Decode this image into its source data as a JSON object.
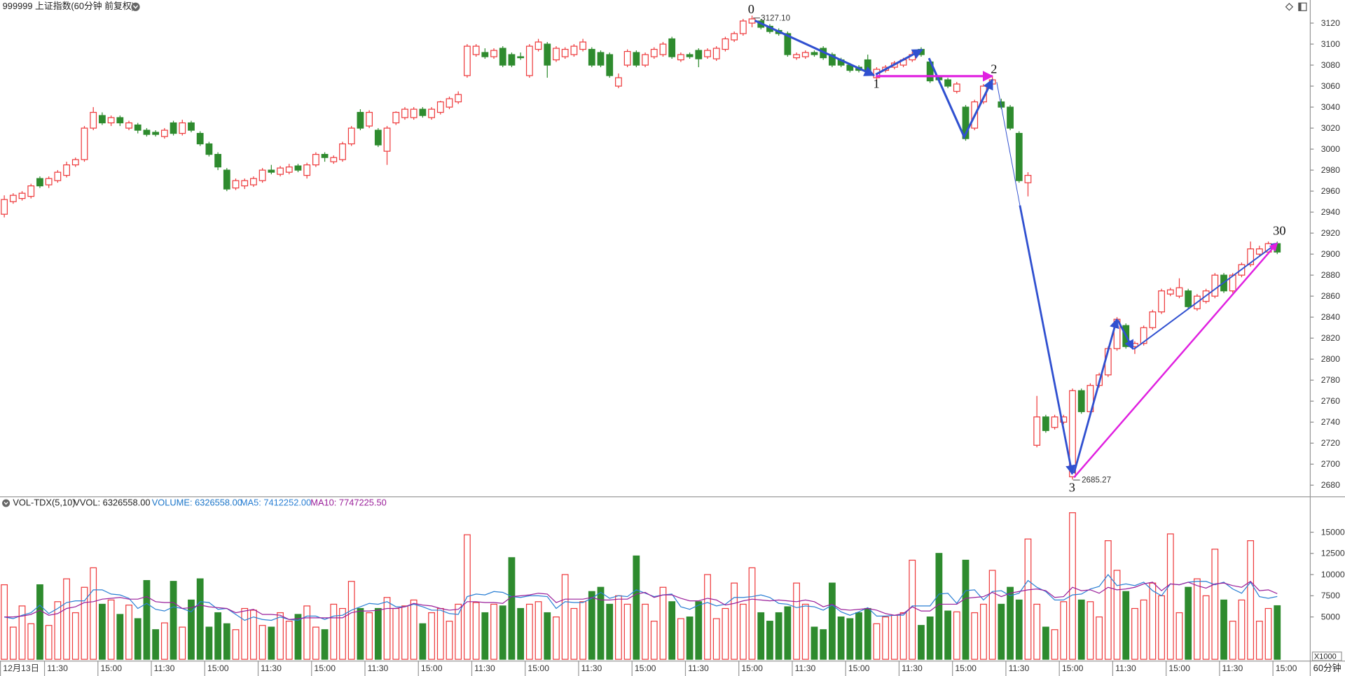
{
  "chart_data": [
    {
      "type": "candlestick",
      "title": "999999 上证指数(60分钟 前复权)",
      "xlabel": "60分钟",
      "up_color": "#ee3a3c",
      "down_color": "#2e8b2e",
      "annotations": [
        "0",
        "3127.10",
        "1",
        "2",
        "3",
        "2685.27",
        "30"
      ],
      "ylim": [
        2669.4,
        3142
      ],
      "yticks": [
        2680,
        2700,
        2720,
        2740,
        2760,
        2780,
        2800,
        2820,
        2840,
        2860,
        2880,
        2900,
        2920,
        2940,
        2960,
        2980,
        3000,
        3020,
        3040,
        3060,
        3080,
        3100,
        3120
      ],
      "categories": [
        "12月13日",
        null,
        null,
        null,
        null,
        "11:30",
        null,
        null,
        null,
        null,
        null,
        "15:00",
        null,
        null,
        null,
        null,
        null,
        "11:30",
        null,
        null,
        null,
        null,
        null,
        "15:00",
        null,
        null,
        null,
        null,
        null,
        "11:30",
        null,
        null,
        null,
        null,
        null,
        "15:00",
        null,
        null,
        null,
        null,
        null,
        "11:30",
        null,
        null,
        null,
        null,
        null,
        "15:00",
        null,
        null,
        null,
        null,
        null,
        "11:30",
        null,
        null,
        null,
        null,
        null,
        "15:00",
        null,
        null,
        null,
        null,
        null,
        "11:30",
        null,
        null,
        null,
        null,
        null,
        "15:00",
        null,
        null,
        null,
        null,
        null,
        "11:30",
        null,
        null,
        null,
        null,
        null,
        "15:00",
        null,
        null,
        null,
        null,
        null,
        "11:30",
        null,
        null,
        null,
        null,
        null,
        "15:00",
        null,
        null,
        null,
        null,
        null,
        "11:30",
        null,
        null,
        null,
        null,
        null,
        "15:00",
        null,
        null,
        null,
        null,
        null,
        "11:30",
        null,
        null,
        null,
        null,
        null,
        "15:00",
        null,
        null,
        null,
        null,
        null,
        "11:30",
        null,
        null,
        null,
        null,
        null,
        "15:00",
        null,
        null,
        null,
        null,
        null,
        "11:30",
        null,
        null,
        null,
        null,
        null,
        "15:00"
      ],
      "open": [
        2938,
        2950,
        2953,
        2955,
        2972,
        2966,
        2970,
        2975,
        2985,
        2990,
        3020,
        3032,
        3025,
        3030,
        3020,
        3023,
        3018,
        3016,
        3012,
        3025,
        3015,
        3025,
        3015,
        3005,
        2995,
        2980,
        2963,
        2965,
        2966,
        2970,
        2980,
        2976,
        2978,
        2984,
        2975,
        2985,
        2995,
        2988,
        2990,
        3005,
        3035,
        3022,
        3018,
        2998,
        3025,
        3030,
        3030,
        3038,
        3030,
        3035,
        3040,
        3045,
        3070,
        3090,
        3092,
        3088,
        3096,
        3090,
        3088,
        3070,
        3095,
        3100,
        3085,
        3088,
        3090,
        3095,
        3095,
        3092,
        3090,
        3060,
        3080,
        3092,
        3080,
        3088,
        3090,
        3105,
        3085,
        3090,
        3094,
        3088,
        3086,
        3095,
        3104,
        3110,
        3120,
        3122,
        3117,
        3113,
        3110,
        3087,
        3088,
        3092,
        3096,
        3090,
        3085,
        3080,
        3078,
        3085,
        3068,
        3075,
        3078,
        3080,
        3085,
        3095,
        3083,
        3068,
        3066,
        3055,
        3040,
        3020,
        3045,
        3062,
        3045,
        3040,
        3015,
        2968,
        2718,
        2745,
        2735,
        2740,
        2688,
        2770,
        2750,
        2775,
        2785,
        2810,
        2832,
        2812,
        2815,
        2830,
        2845,
        2862,
        2860,
        2865,
        2848,
        2855,
        2860,
        2880,
        2865,
        2880,
        2890,
        2900,
        2902,
        2910
      ],
      "high": [
        2956,
        2958,
        2960,
        2967,
        2974,
        2974,
        2980,
        2988,
        2992,
        3022,
        3040,
        3035,
        3032,
        3032,
        3027,
        3025,
        3020,
        3018,
        3020,
        3027,
        3028,
        3027,
        3017,
        3007,
        2997,
        2982,
        2972,
        2972,
        2974,
        2982,
        2985,
        2984,
        2986,
        2986,
        2987,
        2997,
        2997,
        2994,
        3007,
        3022,
        3038,
        3037,
        3020,
        3022,
        3036,
        3040,
        3040,
        3040,
        3040,
        3046,
        3050,
        3055,
        3100,
        3100,
        3096,
        3096,
        3098,
        3092,
        3092,
        3100,
        3105,
        3102,
        3098,
        3097,
        3100,
        3105,
        3097,
        3094,
        3092,
        3072,
        3095,
        3094,
        3092,
        3097,
        3102,
        3107,
        3092,
        3092,
        3096,
        3096,
        3098,
        3107,
        3112,
        3124,
        3127.1,
        3124,
        3119,
        3115,
        3112,
        3092,
        3094,
        3094,
        3098,
        3092,
        3087,
        3082,
        3080,
        3090,
        3078,
        3080,
        3084,
        3087,
        3093,
        3097,
        3085,
        3070,
        3068,
        3064,
        3042,
        3047,
        3062,
        3069,
        3048,
        3042,
        3017,
        2978,
        2765,
        2747,
        2747,
        2747,
        2772,
        2772,
        2777,
        2787,
        2812,
        2840,
        2834,
        2817,
        2832,
        2847,
        2867,
        2868,
        2877,
        2867,
        2862,
        2867,
        2882,
        2882,
        2882,
        2892,
        2912,
        2908,
        2912,
        2912
      ],
      "low": [
        2935,
        2948,
        2951,
        2953,
        2963,
        2963,
        2968,
        2973,
        2983,
        2988,
        3018,
        3023,
        3022,
        3022,
        3018,
        3015,
        3012,
        3012,
        3010,
        3013,
        3013,
        3016,
        3003,
        2993,
        2980,
        2960,
        2961,
        2962,
        2964,
        2968,
        2976,
        2974,
        2976,
        2978,
        2972,
        2983,
        2988,
        2986,
        2988,
        3003,
        3018,
        3020,
        3002,
        2985,
        3023,
        3028,
        3028,
        3030,
        3028,
        3033,
        3038,
        3043,
        3068,
        3088,
        3086,
        3086,
        3078,
        3078,
        3085,
        3068,
        3093,
        3068,
        3083,
        3086,
        3088,
        3093,
        3078,
        3078,
        3068,
        3058,
        3078,
        3078,
        3078,
        3086,
        3088,
        3086,
        3083,
        3086,
        3078,
        3086,
        3084,
        3093,
        3102,
        3108,
        3116,
        3114,
        3110,
        3108,
        3088,
        3085,
        3086,
        3088,
        3085,
        3078,
        3078,
        3073,
        3073,
        3073,
        3066,
        3073,
        3076,
        3078,
        3083,
        3088,
        3063,
        3063,
        3058,
        3053,
        3008,
        3018,
        3043,
        3058,
        3038,
        3018,
        2968,
        2955,
        2716,
        2730,
        2733,
        2738,
        2685.27,
        2748,
        2748,
        2773,
        2783,
        2808,
        2810,
        2805,
        2813,
        2828,
        2843,
        2860,
        2858,
        2848,
        2846,
        2853,
        2858,
        2863,
        2863,
        2878,
        2888,
        2898,
        2900,
        2900
      ],
      "close": [
        2952,
        2956,
        2958,
        2965,
        2965,
        2972,
        2978,
        2985,
        2990,
        3020,
        3035,
        3025,
        3030,
        3025,
        3025,
        3018,
        3014,
        3014,
        3018,
        3015,
        3025,
        3018,
        3005,
        2995,
        2983,
        2962,
        2970,
        2970,
        2972,
        2980,
        2978,
        2982,
        2983,
        2980,
        2985,
        2995,
        2992,
        2992,
        3005,
        3020,
        3020,
        3035,
        3004,
        3020,
        3035,
        3038,
        3038,
        3032,
        3038,
        3045,
        3048,
        3052,
        3098,
        3098,
        3088,
        3094,
        3080,
        3080,
        3087,
        3098,
        3102,
        3080,
        3096,
        3095,
        3098,
        3102,
        3080,
        3080,
        3070,
        3068,
        3093,
        3080,
        3090,
        3095,
        3100,
        3088,
        3090,
        3088,
        3086,
        3094,
        3096,
        3105,
        3110,
        3122,
        3124,
        3116,
        3112,
        3110,
        3090,
        3090,
        3092,
        3090,
        3087,
        3080,
        3080,
        3075,
        3075,
        3075,
        3076,
        3078,
        3082,
        3085,
        3090,
        3090,
        3065,
        3066,
        3060,
        3062,
        3010,
        3045,
        3060,
        3066,
        3040,
        3020,
        2970,
        2975,
        2745,
        2732,
        2745,
        2745,
        2770,
        2750,
        2775,
        2785,
        2810,
        2838,
        2812,
        2815,
        2830,
        2845,
        2865,
        2866,
        2868,
        2850,
        2860,
        2865,
        2880,
        2865,
        2880,
        2890,
        2905,
        2905,
        2910,
        2902
      ]
    },
    {
      "type": "bar",
      "title": "VOL-TDX(5,10)",
      "subtitle": "VVOL: 6326558.00",
      "y_unit_label": "X1000",
      "ylim": [
        0,
        17420
      ],
      "yticks": [
        5000,
        7500,
        10000,
        12500,
        15000
      ],
      "series": [
        {
          "name": "VOLUME: 6326558.00",
          "type": "bar",
          "color": "#1a74c8",
          "values": [
            8800,
            3800,
            6300,
            4200,
            8800,
            4000,
            6800,
            9500,
            5500,
            8500,
            10800,
            6500,
            7000,
            5300,
            6400,
            4800,
            9300,
            3500,
            4300,
            9200,
            3800,
            7000,
            9500,
            3800,
            5500,
            4200,
            3500,
            6000,
            5800,
            4000,
            3800,
            5500,
            4500,
            5300,
            6300,
            3800,
            3500,
            6500,
            6000,
            9200,
            6000,
            5500,
            6000,
            7300,
            6000,
            6300,
            7000,
            4200,
            5500,
            6000,
            4500,
            6500,
            14700,
            6700,
            5500,
            6500,
            6300,
            12000,
            6000,
            6500,
            6800,
            5500,
            5000,
            10000,
            6000,
            6800,
            8000,
            8500,
            6500,
            7500,
            6500,
            12200,
            6500,
            4500,
            8500,
            6800,
            4800,
            5000,
            6800,
            10000,
            4800,
            6000,
            9000,
            6500,
            10800,
            5500,
            4500,
            5500,
            6200,
            9000,
            6500,
            3800,
            3500,
            9000,
            5000,
            4800,
            5500,
            6000,
            4200,
            5000,
            5200,
            5500,
            11700,
            4000,
            5000,
            12500,
            5700,
            5600,
            11700,
            5500,
            6500,
            10500,
            6500,
            8500,
            7000,
            14200,
            6500,
            3800,
            3500,
            6800,
            17300,
            7000,
            6800,
            5000,
            14000,
            10500,
            8000,
            6000,
            7000,
            9000,
            7500,
            14800,
            5500,
            8500,
            9500,
            7500,
            13000,
            7000,
            4500,
            7000,
            14000,
            4500,
            6000,
            6326.558
          ]
        },
        {
          "name": "MA5: 7412252.00",
          "type": "line",
          "color": "#2a7fd4",
          "values": [
            5000,
            4800,
            5200,
            5500,
            6400,
            5400,
            6000,
            6700,
            6900,
            6900,
            8200,
            8200,
            7700,
            7600,
            7200,
            6000,
            6600,
            5900,
            5700,
            6200,
            6000,
            5600,
            6800,
            6700,
            5900,
            6000,
            5300,
            4600,
            5000,
            4700,
            4600,
            5000,
            4700,
            4600,
            5100,
            5100,
            4700,
            5100,
            5200,
            5800,
            6200,
            6600,
            6500,
            6800,
            6200,
            6200,
            6500,
            6200,
            5800,
            5800,
            5400,
            5300,
            7400,
            7700,
            7600,
            8000,
            7900,
            7400,
            7300,
            7500,
            7500,
            7400,
            6000,
            6800,
            6700,
            6700,
            7200,
            7900,
            7200,
            7500,
            7400,
            8200,
            7800,
            7400,
            7600,
            7700,
            6200,
            5900,
            6400,
            6700,
            6300,
            6500,
            7300,
            7300,
            7400,
            7600,
            7300,
            6600,
            6500,
            6100,
            6300,
            6200,
            5800,
            6400,
            5600,
            5200,
            5600,
            6100,
            5100,
            5100,
            5200,
            5200,
            6300,
            6300,
            6300,
            7700,
            7800,
            6600,
            8100,
            8200,
            7000,
            8000,
            8100,
            7500,
            7800,
            9300,
            8500,
            8000,
            7000,
            7000,
            7600,
            7700,
            8300,
            8600,
            10000,
            8700,
            8900,
            8700,
            9100,
            8100,
            7500,
            8900,
            8800,
            9100,
            9200,
            9200,
            8800,
            9100,
            8300,
            7800,
            9100,
            7400,
            7200,
            7412.252
          ]
        },
        {
          "name": "MA10: 7747225.50",
          "type": "line",
          "color": "#9a1f9a",
          "values": [
            5000,
            5000,
            5100,
            5300,
            5800,
            5200,
            5400,
            6000,
            6200,
            6700,
            6800,
            7100,
            7200,
            7300,
            7100,
            7100,
            7400,
            6800,
            6700,
            6700,
            6000,
            6100,
            6400,
            6200,
            6100,
            6000,
            5500,
            5700,
            5900,
            5300,
            5300,
            5200,
            4700,
            4800,
            4900,
            4900,
            4900,
            4900,
            4900,
            5500,
            5700,
            5700,
            5800,
            6000,
            6000,
            6200,
            6600,
            6400,
            6300,
            6000,
            5800,
            5900,
            6800,
            6800,
            6700,
            6700,
            6600,
            7400,
            7500,
            7600,
            7800,
            7700,
            6700,
            7100,
            7100,
            7100,
            7300,
            7000,
            7000,
            7100,
            7100,
            7700,
            7900,
            7300,
            7600,
            7600,
            7200,
            6900,
            6900,
            7200,
            7000,
            6400,
            6600,
            6900,
            7100,
            7000,
            6900,
            7000,
            6900,
            6800,
            7000,
            6800,
            6200,
            6500,
            5900,
            5800,
            5900,
            6000,
            5800,
            5400,
            5200,
            5400,
            6200,
            5700,
            5700,
            6500,
            6500,
            6500,
            7200,
            7300,
            7400,
            7900,
            7400,
            7800,
            8000,
            8200,
            8300,
            8100,
            7300,
            7400,
            8500,
            8100,
            8200,
            7800,
            8500,
            8200,
            8300,
            8500,
            8900,
            9100,
            8100,
            8900,
            8800,
            9100,
            8700,
            8400,
            8900,
            9000,
            8700,
            8500,
            9200,
            8100,
            8200,
            7747.2255
          ]
        }
      ]
    }
  ]
}
